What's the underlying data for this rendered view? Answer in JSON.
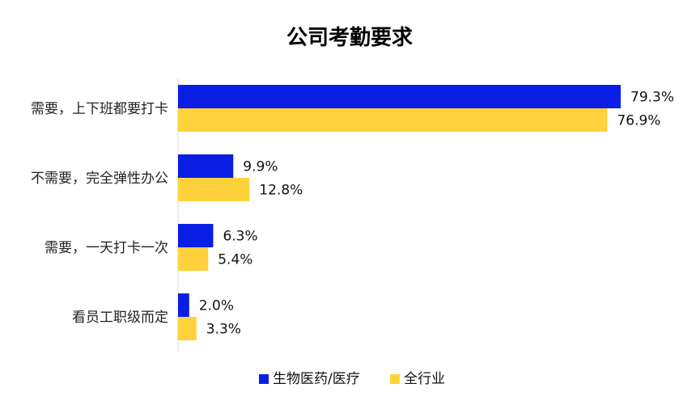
{
  "chart_data": {
    "type": "bar",
    "orientation": "horizontal",
    "title": "公司考勤要求",
    "categories": [
      "需要，上下班都要打卡",
      "不需要，完全弹性办公",
      "需要，一天打卡一次",
      "看员工职级而定"
    ],
    "series": [
      {
        "name": "生物医药/医疗",
        "values": [
          79.3,
          9.9,
          6.3,
          2.0
        ],
        "labels": [
          "79.3%",
          "9.9%",
          "6.3%",
          "2.0%"
        ],
        "color": "#0a1ee6"
      },
      {
        "name": "全行业",
        "values": [
          76.9,
          12.8,
          5.4,
          3.3
        ],
        "labels": [
          "76.9%",
          "12.8%",
          "5.4%",
          "3.3%"
        ],
        "color": "#ffd23c"
      }
    ],
    "xlim": [
      0,
      100
    ],
    "grid": false,
    "legend_position": "bottom"
  }
}
